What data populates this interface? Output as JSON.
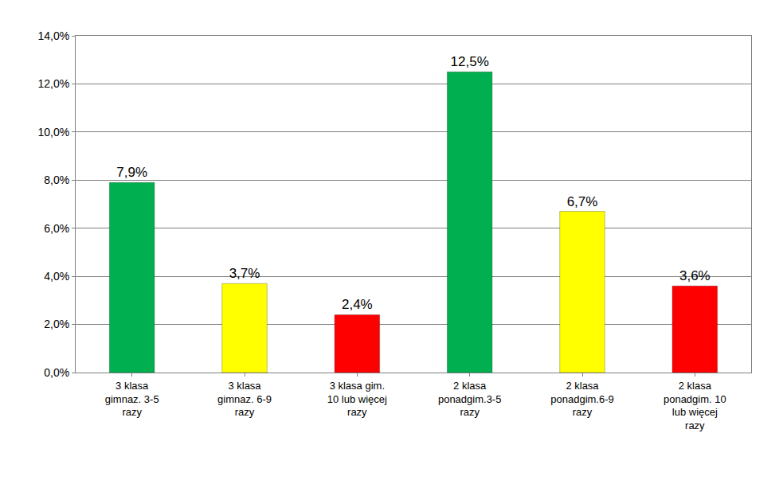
{
  "chart_data": {
    "type": "bar",
    "categories": [
      "3 klasa gimnaz. 3-5 razy",
      "3 klasa gimnaz. 6-9 razy",
      "3 klasa gim. 10 lub więcej razy",
      "2 klasa ponadgim.3-5 razy",
      "2 klasa ponadgim.6-9 razy",
      "2 klasa ponadgim. 10 lub więcej razy"
    ],
    "values": [
      7.9,
      3.7,
      2.4,
      12.5,
      6.7,
      3.6
    ],
    "value_labels": [
      "7,9%",
      "3,7%",
      "2,4%",
      "12,5%",
      "6,7%",
      "3,6%"
    ],
    "colors": [
      "#00b050",
      "#ffff00",
      "#ff0000",
      "#00b050",
      "#ffff00",
      "#ff0000"
    ],
    "ylim": [
      0,
      14
    ],
    "yticks": [
      {
        "value": 0,
        "label": "0,0%"
      },
      {
        "value": 2,
        "label": "2,0%"
      },
      {
        "value": 4,
        "label": "4,0%"
      },
      {
        "value": 6,
        "label": "6,0%"
      },
      {
        "value": 8,
        "label": "8,0%"
      },
      {
        "value": 10,
        "label": "10,0%"
      },
      {
        "value": 12,
        "label": "12,0%"
      },
      {
        "value": 14,
        "label": "14,0%"
      }
    ],
    "grid": true,
    "data_labels": true
  }
}
